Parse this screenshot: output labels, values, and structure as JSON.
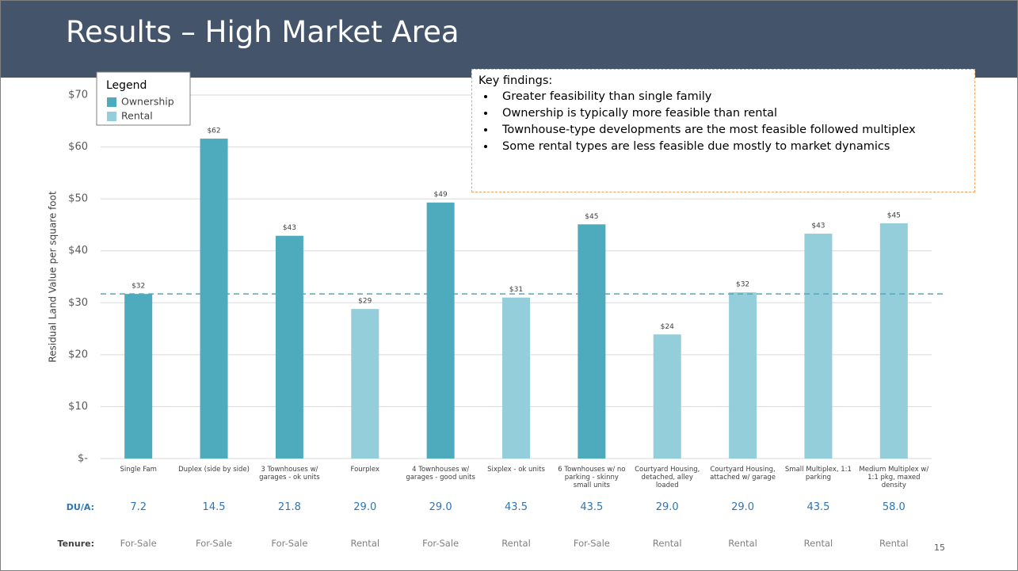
{
  "header": {
    "title": "Results – High Market Area"
  },
  "chart_data": {
    "type": "bar",
    "y_label": "Residual Land Value per square foot",
    "categories": [
      "Single Fam",
      "Duplex (side by side)",
      "3 Townhouses w/ garages - ok units",
      "Fourplex",
      "4 Townhouses w/ garages - good units",
      "Sixplex - ok units",
      "6 Townhouses w/ no parking - skinny small units",
      "Courtyard Housing, detached, alley loaded",
      "Courtyard Housing, attached w/ garage",
      "Small Multiplex, 1:1 parking",
      "Medium Multiplex w/ 1:1 pkg, maxed density"
    ],
    "legend_title": "Legend",
    "series": [
      {
        "name": "Ownership",
        "color": "#4eaabd",
        "values": [
          31.7,
          61.6,
          42.9,
          null,
          49.3,
          null,
          45.1,
          null,
          null,
          null,
          null
        ],
        "value_labels": [
          "$32",
          "$62",
          "$43",
          null,
          "$49",
          null,
          "$45",
          null,
          null,
          null,
          null
        ]
      },
      {
        "name": "Rental",
        "color": "#93ceda",
        "values": [
          null,
          null,
          null,
          28.8,
          null,
          31.0,
          null,
          23.9,
          32.0,
          43.3,
          45.3
        ],
        "value_labels": [
          null,
          null,
          null,
          "$29",
          null,
          "$31",
          null,
          "$24",
          "$32",
          "$43",
          "$45"
        ]
      }
    ],
    "reference_line": {
      "value": 31.7,
      "color": "#4eaabd"
    },
    "ylim": [
      0,
      70
    ],
    "yticks": [
      {
        "value": 0,
        "label": "$-"
      },
      {
        "value": 10,
        "label": "$10"
      },
      {
        "value": 20,
        "label": "$20"
      },
      {
        "value": 30,
        "label": "$30"
      },
      {
        "value": 40,
        "label": "$40"
      },
      {
        "value": 50,
        "label": "$50"
      },
      {
        "value": 60,
        "label": "$60"
      },
      {
        "value": 70,
        "label": "$70"
      }
    ],
    "grid": true
  },
  "rows": [
    {
      "label": "DU/A:",
      "values": [
        "7.2",
        "14.5",
        "21.8",
        "29.0",
        "29.0",
        "43.5",
        "43.5",
        "29.0",
        "29.0",
        "43.5",
        "58.0"
      ]
    },
    {
      "label": "Tenure:",
      "values": [
        "For-Sale",
        "For-Sale",
        "For-Sale",
        "Rental",
        "For-Sale",
        "Rental",
        "For-Sale",
        "Rental",
        "Rental",
        "Rental",
        "Rental"
      ]
    }
  ],
  "key_findings": {
    "title": "Key findings:",
    "items": [
      "Greater feasibility than single family",
      "Ownership is typically more feasible than rental",
      "Townhouse-type developments are the most feasible followed multiplex",
      "Some rental types are less feasible due mostly to market dynamics"
    ]
  },
  "page_number": "15"
}
